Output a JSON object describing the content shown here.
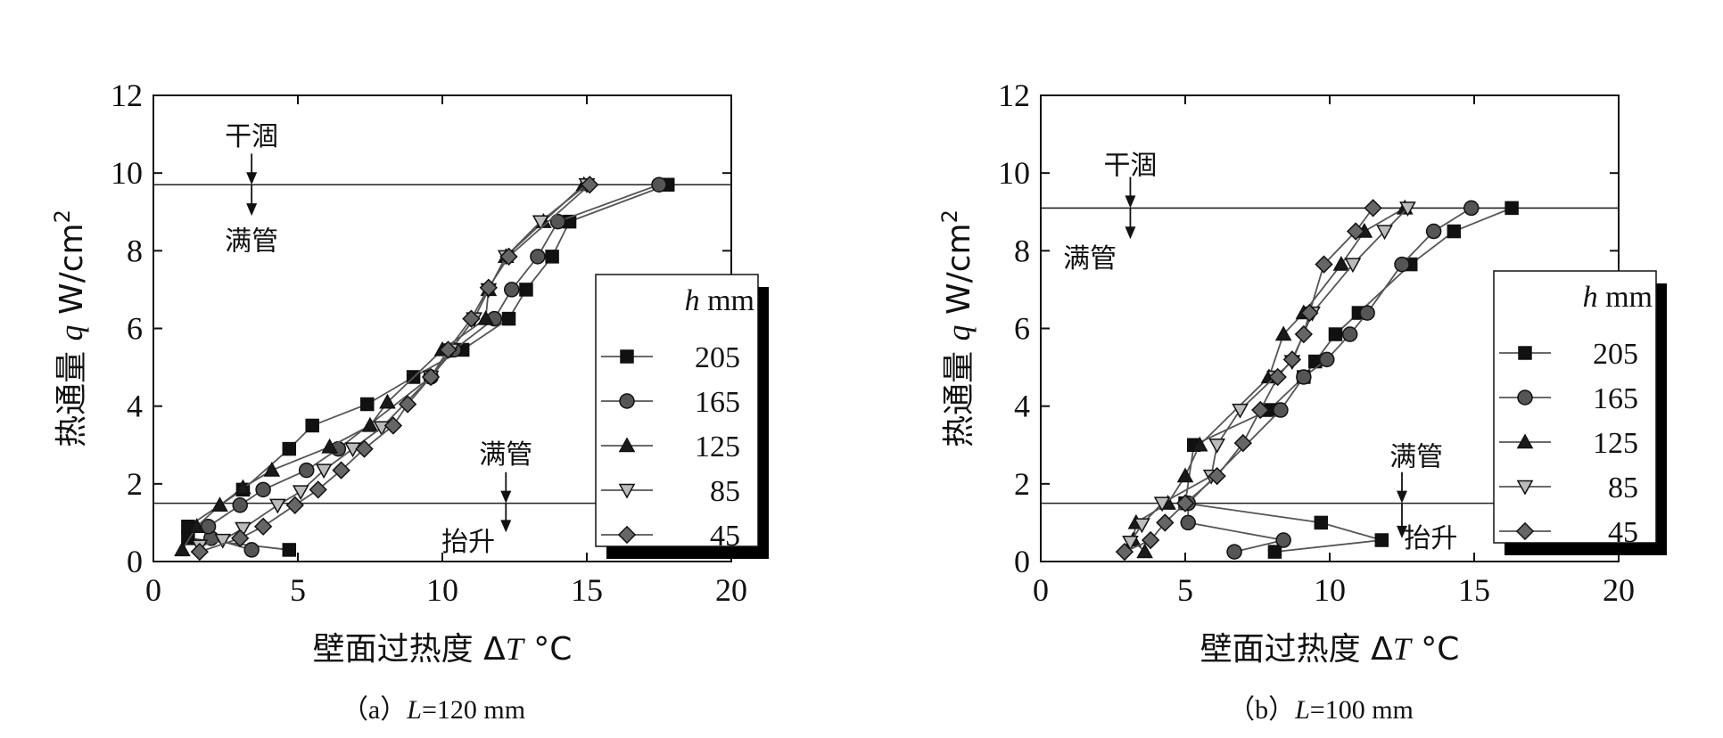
{
  "chart_data": [
    {
      "type": "line",
      "panel": "a",
      "caption": {
        "prefix": "（a）",
        "var": "L",
        "rest": "=120 mm"
      },
      "xlabel": {
        "text": "壁面过热度 Δ",
        "var": "T",
        "unit": " °C"
      },
      "ylabel": {
        "text": "热通量 ",
        "var": "q",
        "unit": " W/cm",
        "sup": "2"
      },
      "xlim": [
        0,
        20
      ],
      "ylim": [
        0,
        12
      ],
      "xticks": [
        "0",
        "5",
        "10",
        "15",
        "20"
      ],
      "yticks": [
        "0",
        "2",
        "4",
        "6",
        "8",
        "10",
        "12"
      ],
      "hlines": [
        9.7,
        1.5
      ],
      "annotations": [
        {
          "text": "干涸",
          "x": 3.4,
          "y": 10.95
        },
        {
          "text": "满管",
          "x": 3.4,
          "y": 8.25
        },
        {
          "text": "满管",
          "x": 12.2,
          "y": 2.75
        },
        {
          "text": "抬升",
          "x": 10.9,
          "y": 0.5
        }
      ],
      "arrows": [
        {
          "x": 3.4,
          "y1": 10.5,
          "y2": 9.7
        },
        {
          "x": 3.4,
          "y1": 9.7,
          "y2": 8.9
        },
        {
          "x": 12.2,
          "y1": 2.3,
          "y2": 1.5
        },
        {
          "x": 12.2,
          "y1": 1.5,
          "y2": 0.75
        }
      ],
      "legend": {
        "title_var": "h",
        "title_unit": " mm",
        "position": "right",
        "entries": [
          "205",
          "165",
          "125",
          "85",
          "45"
        ]
      },
      "series": [
        {
          "name": "205",
          "marker": "square",
          "color": "#111111",
          "points": [
            [
              4.7,
              0.3
            ],
            [
              1.2,
              0.6
            ],
            [
              1.2,
              0.9
            ],
            [
              3.1,
              1.85
            ],
            [
              4.7,
              2.9
            ],
            [
              5.5,
              3.5
            ],
            [
              7.4,
              4.05
            ],
            [
              9.0,
              4.75
            ],
            [
              10.7,
              5.45
            ],
            [
              12.3,
              6.25
            ],
            [
              12.9,
              7.0
            ],
            [
              13.8,
              7.85
            ],
            [
              14.4,
              8.75
            ],
            [
              17.8,
              9.7
            ]
          ]
        },
        {
          "name": "165",
          "marker": "circle",
          "color": "#555555",
          "points": [
            [
              3.4,
              0.3
            ],
            [
              2.0,
              0.6
            ],
            [
              1.9,
              0.9
            ],
            [
              3.0,
              1.45
            ],
            [
              3.8,
              1.85
            ],
            [
              5.3,
              2.35
            ],
            [
              6.4,
              2.9
            ],
            [
              9.6,
              4.75
            ],
            [
              10.4,
              5.45
            ],
            [
              11.8,
              6.25
            ],
            [
              12.4,
              7.0
            ],
            [
              13.3,
              7.85
            ],
            [
              14.0,
              8.75
            ],
            [
              17.5,
              9.7
            ]
          ]
        },
        {
          "name": "125",
          "marker": "tri-up",
          "color": "#1a1a1a",
          "points": [
            [
              1.0,
              0.3
            ],
            [
              1.5,
              0.9
            ],
            [
              2.3,
              1.45
            ],
            [
              3.1,
              1.9
            ],
            [
              4.1,
              2.35
            ],
            [
              6.1,
              2.95
            ],
            [
              7.5,
              3.5
            ],
            [
              8.1,
              4.1
            ],
            [
              10.0,
              5.45
            ],
            [
              11.5,
              6.25
            ],
            [
              11.6,
              7.0
            ],
            [
              12.2,
              7.85
            ],
            [
              13.5,
              8.75
            ],
            [
              14.9,
              9.7
            ]
          ]
        },
        {
          "name": "85",
          "marker": "tri-down",
          "color": "#bbbbbb",
          "points": [
            [
              1.6,
              0.4
            ],
            [
              2.4,
              0.55
            ],
            [
              3.1,
              0.85
            ],
            [
              4.3,
              1.45
            ],
            [
              5.1,
              1.8
            ],
            [
              5.9,
              2.35
            ],
            [
              6.9,
              2.9
            ],
            [
              7.9,
              3.45
            ],
            [
              9.6,
              4.75
            ],
            [
              10.3,
              5.45
            ],
            [
              11.1,
              6.25
            ],
            [
              11.6,
              7.0
            ],
            [
              12.2,
              7.85
            ],
            [
              13.4,
              8.75
            ],
            [
              15.0,
              9.7
            ]
          ]
        },
        {
          "name": "45",
          "marker": "diamond",
          "color": "#666666",
          "points": [
            [
              1.6,
              0.25
            ],
            [
              3.0,
              0.6
            ],
            [
              3.8,
              0.9
            ],
            [
              4.9,
              1.45
            ],
            [
              5.7,
              1.85
            ],
            [
              6.5,
              2.35
            ],
            [
              7.3,
              2.9
            ],
            [
              8.3,
              3.5
            ],
            [
              8.8,
              4.05
            ],
            [
              9.6,
              4.75
            ],
            [
              10.2,
              5.45
            ],
            [
              11.0,
              6.25
            ],
            [
              11.6,
              7.05
            ],
            [
              12.3,
              7.85
            ],
            [
              15.1,
              9.7
            ]
          ]
        }
      ]
    },
    {
      "type": "line",
      "panel": "b",
      "caption": {
        "prefix": "（b）",
        "var": "L",
        "rest": "=100 mm"
      },
      "xlabel": {
        "text": "壁面过热度 Δ",
        "var": "T",
        "unit": " °C"
      },
      "ylabel": {
        "text": "热通量 ",
        "var": "q",
        "unit": " W/cm",
        "sup": "2"
      },
      "xlim": [
        0,
        20
      ],
      "ylim": [
        0,
        12
      ],
      "xticks": [
        "0",
        "5",
        "10",
        "15",
        "20"
      ],
      "yticks": [
        "0",
        "2",
        "4",
        "6",
        "8",
        "10",
        "12"
      ],
      "hlines": [
        9.1,
        1.5
      ],
      "annotations": [
        {
          "text": "干涸",
          "x": 3.1,
          "y": 10.2
        },
        {
          "text": "满管",
          "x": 1.7,
          "y": 7.8
        },
        {
          "text": "满管",
          "x": 13.0,
          "y": 2.7
        },
        {
          "text": "抬升",
          "x": 13.5,
          "y": 0.6
        }
      ],
      "arrows": [
        {
          "x": 3.1,
          "y1": 9.9,
          "y2": 9.1
        },
        {
          "x": 3.1,
          "y1": 9.1,
          "y2": 8.3
        },
        {
          "x": 12.5,
          "y1": 2.3,
          "y2": 1.5
        },
        {
          "x": 12.5,
          "y1": 1.5,
          "y2": 0.6
        }
      ],
      "legend": {
        "title_var": "h",
        "title_unit": " mm",
        "position": "right",
        "entries": [
          "205",
          "165",
          "125",
          "85",
          "45"
        ]
      },
      "series": [
        {
          "name": "205",
          "marker": "square",
          "color": "#111111",
          "points": [
            [
              8.1,
              0.25
            ],
            [
              11.8,
              0.55
            ],
            [
              9.7,
              1.0
            ],
            [
              5.0,
              1.5
            ],
            [
              5.3,
              3.0
            ],
            [
              7.9,
              3.9
            ],
            [
              9.1,
              4.75
            ],
            [
              9.5,
              5.15
            ],
            [
              10.2,
              5.85
            ],
            [
              11.0,
              6.4
            ],
            [
              12.8,
              7.65
            ],
            [
              14.3,
              8.5
            ],
            [
              16.3,
              9.1
            ]
          ]
        },
        {
          "name": "165",
          "marker": "circle",
          "color": "#555555",
          "points": [
            [
              6.7,
              0.25
            ],
            [
              8.4,
              0.55
            ],
            [
              5.1,
              1.0
            ],
            [
              5.1,
              1.5
            ],
            [
              8.3,
              3.9
            ],
            [
              9.1,
              4.75
            ],
            [
              9.9,
              5.2
            ],
            [
              10.7,
              5.85
            ],
            [
              11.3,
              6.4
            ],
            [
              12.5,
              7.65
            ],
            [
              13.6,
              8.5
            ],
            [
              14.9,
              9.1
            ]
          ]
        },
        {
          "name": "125",
          "marker": "tri-up",
          "color": "#1a1a1a",
          "points": [
            [
              3.6,
              0.25
            ],
            [
              3.2,
              0.55
            ],
            [
              3.3,
              1.0
            ],
            [
              4.4,
              1.5
            ],
            [
              5.0,
              2.2
            ],
            [
              5.5,
              3.0
            ],
            [
              7.9,
              4.75
            ],
            [
              8.4,
              5.85
            ],
            [
              9.1,
              6.4
            ],
            [
              10.4,
              7.65
            ],
            [
              11.2,
              8.5
            ],
            [
              12.6,
              9.1
            ]
          ]
        },
        {
          "name": "85",
          "marker": "tri-down",
          "color": "#bbbbbb",
          "points": [
            [
              3.1,
              0.5
            ],
            [
              3.5,
              0.95
            ],
            [
              4.2,
              1.5
            ],
            [
              5.9,
              2.2
            ],
            [
              6.1,
              3.0
            ],
            [
              6.9,
              3.9
            ],
            [
              8.1,
              4.75
            ],
            [
              8.7,
              5.15
            ],
            [
              9.4,
              6.4
            ],
            [
              10.8,
              7.65
            ],
            [
              11.9,
              8.5
            ],
            [
              12.7,
              9.1
            ]
          ]
        },
        {
          "name": "45",
          "marker": "diamond",
          "color": "#666666",
          "points": [
            [
              2.9,
              0.25
            ],
            [
              3.8,
              0.55
            ],
            [
              4.3,
              1.0
            ],
            [
              5.0,
              1.5
            ],
            [
              6.1,
              2.2
            ],
            [
              7.0,
              3.05
            ],
            [
              7.6,
              3.9
            ],
            [
              8.2,
              4.75
            ],
            [
              8.7,
              5.2
            ],
            [
              9.1,
              5.85
            ],
            [
              9.3,
              6.4
            ],
            [
              9.8,
              7.65
            ],
            [
              10.9,
              8.5
            ],
            [
              11.5,
              9.1
            ]
          ]
        }
      ]
    }
  ]
}
